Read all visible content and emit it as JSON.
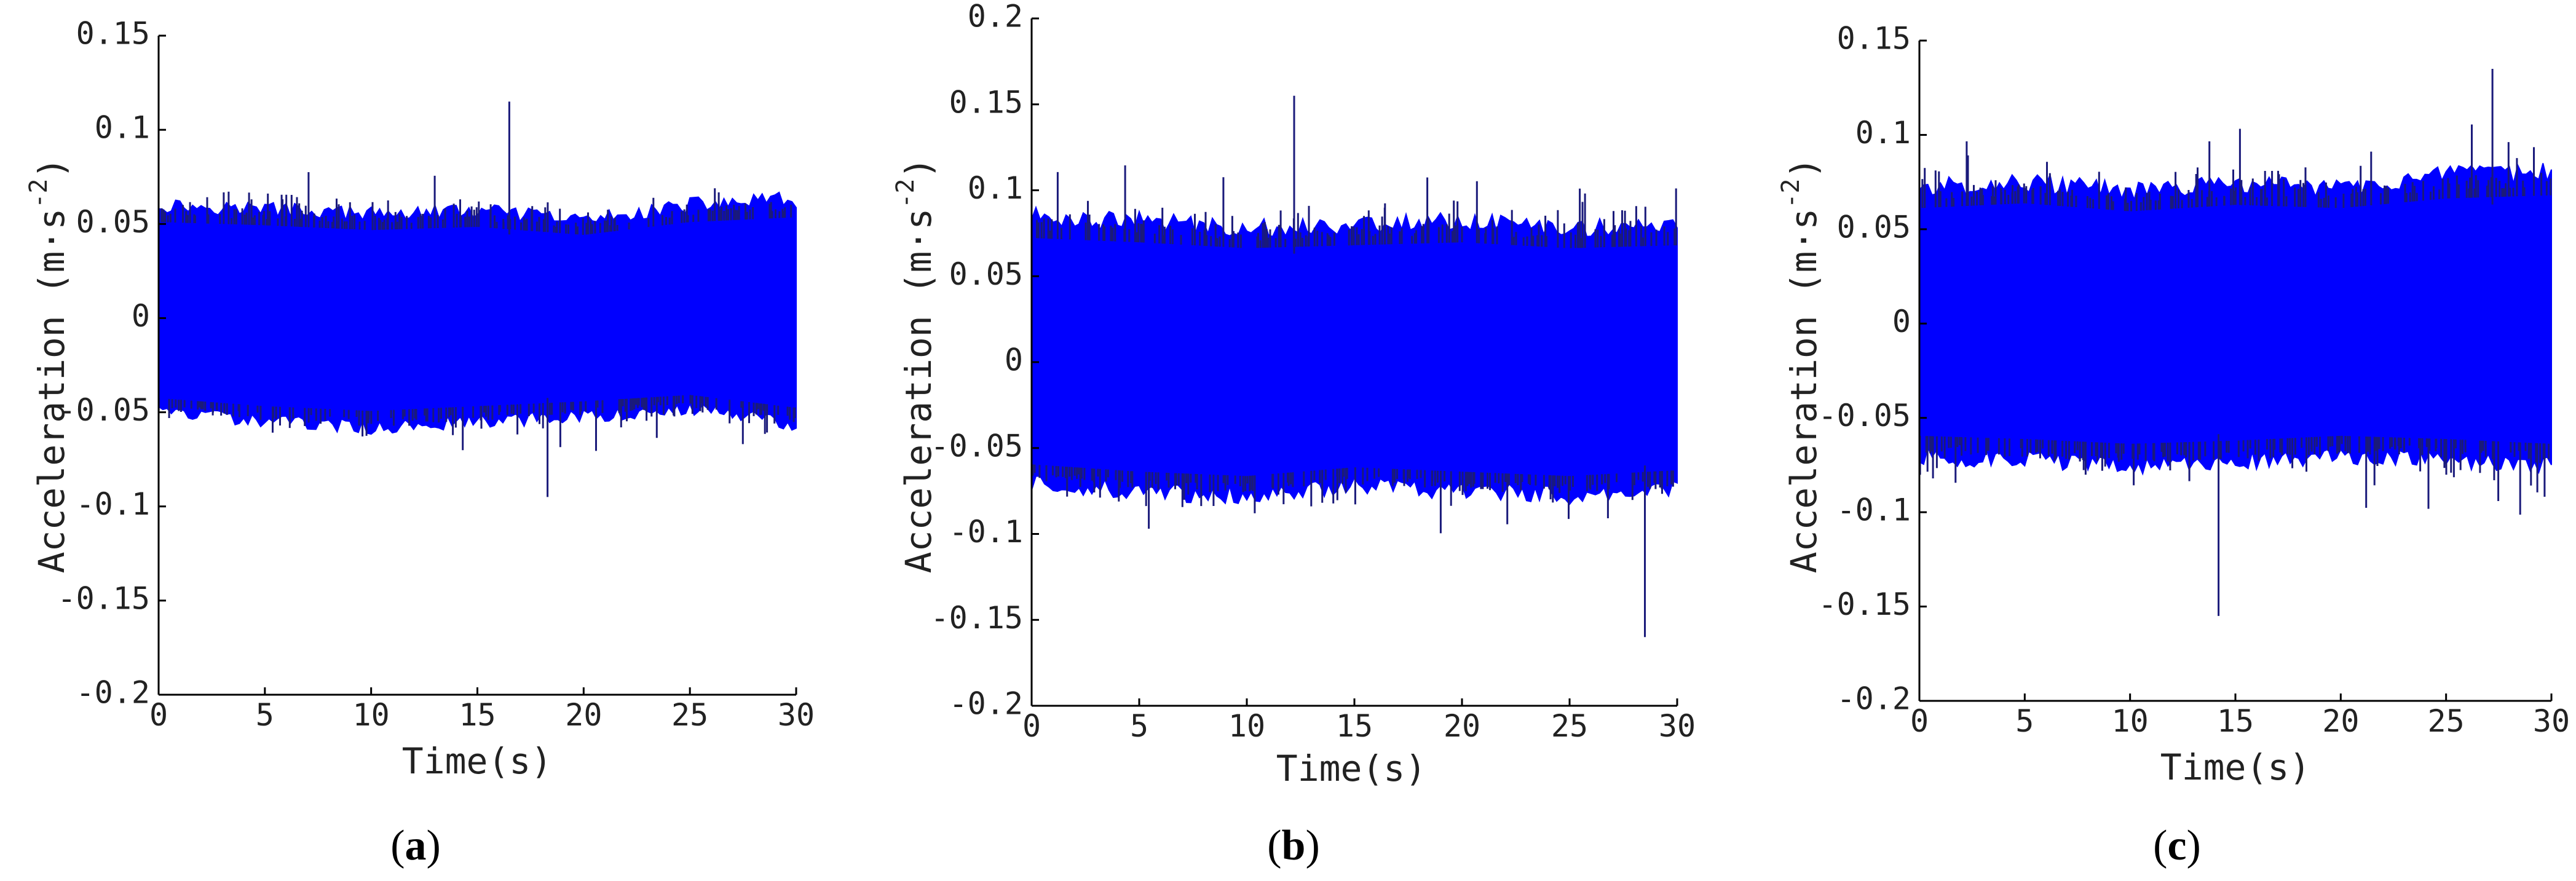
{
  "chart_data": [
    {
      "type": "line",
      "panel_label": "a",
      "xlabel": "Time(s)",
      "ylabel": "Acceleration (m·s⁻²)",
      "xlim": [
        0,
        30
      ],
      "ylim": [
        -0.2,
        0.15
      ],
      "xticks": [
        0,
        5,
        10,
        15,
        20,
        25,
        30
      ],
      "xtick_labels": [
        "0",
        "5",
        "10",
        "15",
        "20",
        "25",
        "30"
      ],
      "yticks": [
        0.15,
        0.1,
        0.05,
        0,
        -0.05,
        -0.1,
        -0.15,
        -0.2
      ],
      "ytick_labels": [
        "0.15",
        "0.1",
        "0.05",
        "0",
        "-0.05",
        "-0.1",
        "-0.15",
        "-0.2"
      ],
      "grid": false,
      "series": [
        {
          "color": "#0000ff",
          "envelope": {
            "t": [
              0,
              5,
              10,
              15,
              20,
              25,
              30
            ],
            "upper": [
              0.06,
              0.058,
              0.055,
              0.057,
              0.052,
              0.06,
              0.063
            ],
            "lower": [
              -0.05,
              -0.055,
              -0.058,
              -0.055,
              -0.052,
              -0.048,
              -0.056
            ]
          },
          "peaks": {
            "max": 0.115,
            "max_t": 16.5,
            "min": -0.095,
            "min_t": 18.3
          }
        }
      ]
    },
    {
      "type": "line",
      "panel_label": "b",
      "xlabel": "Time(s)",
      "ylabel": "Acceleration (m·s⁻²)",
      "xlim": [
        0,
        30
      ],
      "ylim": [
        -0.2,
        0.2
      ],
      "xticks": [
        0,
        5,
        10,
        15,
        20,
        25,
        30
      ],
      "xtick_labels": [
        "0",
        "5",
        "10",
        "15",
        "20",
        "25",
        "30"
      ],
      "yticks": [
        0.2,
        0.15,
        0.1,
        0.05,
        0,
        -0.05,
        -0.1,
        -0.15,
        -0.2
      ],
      "ytick_labels": [
        "0.2",
        "0.15",
        "0.1",
        "0.05",
        "0",
        "-0.05",
        "-0.1",
        "-0.15",
        "-0.2"
      ],
      "grid": false,
      "series": [
        {
          "color": "#0000ff",
          "envelope": {
            "t": [
              0,
              5,
              10,
              15,
              20,
              25,
              30
            ],
            "upper": [
              0.085,
              0.082,
              0.078,
              0.08,
              0.082,
              0.078,
              0.08
            ],
            "lower": [
              -0.07,
              -0.075,
              -0.078,
              -0.072,
              -0.075,
              -0.078,
              -0.074
            ]
          },
          "peaks": {
            "max": 0.155,
            "max_t": 12.2,
            "min": -0.16,
            "min_t": 28.5
          }
        }
      ]
    },
    {
      "type": "line",
      "panel_label": "c",
      "xlabel": "Time(s)",
      "ylabel": "Acceleration (m·s⁻²)",
      "xlim": [
        0,
        30
      ],
      "ylim": [
        -0.2,
        0.15
      ],
      "xticks": [
        0,
        5,
        10,
        15,
        20,
        25,
        30
      ],
      "xtick_labels": [
        "0",
        "5",
        "10",
        "15",
        "20",
        "25",
        "30"
      ],
      "yticks": [
        0.15,
        0.1,
        0.05,
        0,
        -0.05,
        -0.1,
        -0.15,
        -0.2
      ],
      "ytick_labels": [
        "0.15",
        "0.1",
        "0.05",
        "0",
        "-0.05",
        "-0.1",
        "-0.15",
        "-0.2"
      ],
      "grid": false,
      "series": [
        {
          "color": "#0000ff",
          "envelope": {
            "t": [
              0,
              5,
              10,
              15,
              20,
              25,
              30
            ],
            "upper": [
              0.072,
              0.075,
              0.07,
              0.074,
              0.072,
              0.078,
              0.08
            ],
            "lower": [
              -0.07,
              -0.072,
              -0.075,
              -0.073,
              -0.07,
              -0.072,
              -0.075
            ]
          },
          "peaks": {
            "max": 0.135,
            "max_t": 27.2,
            "min": -0.155,
            "min_t": 14.2
          }
        }
      ]
    }
  ]
}
